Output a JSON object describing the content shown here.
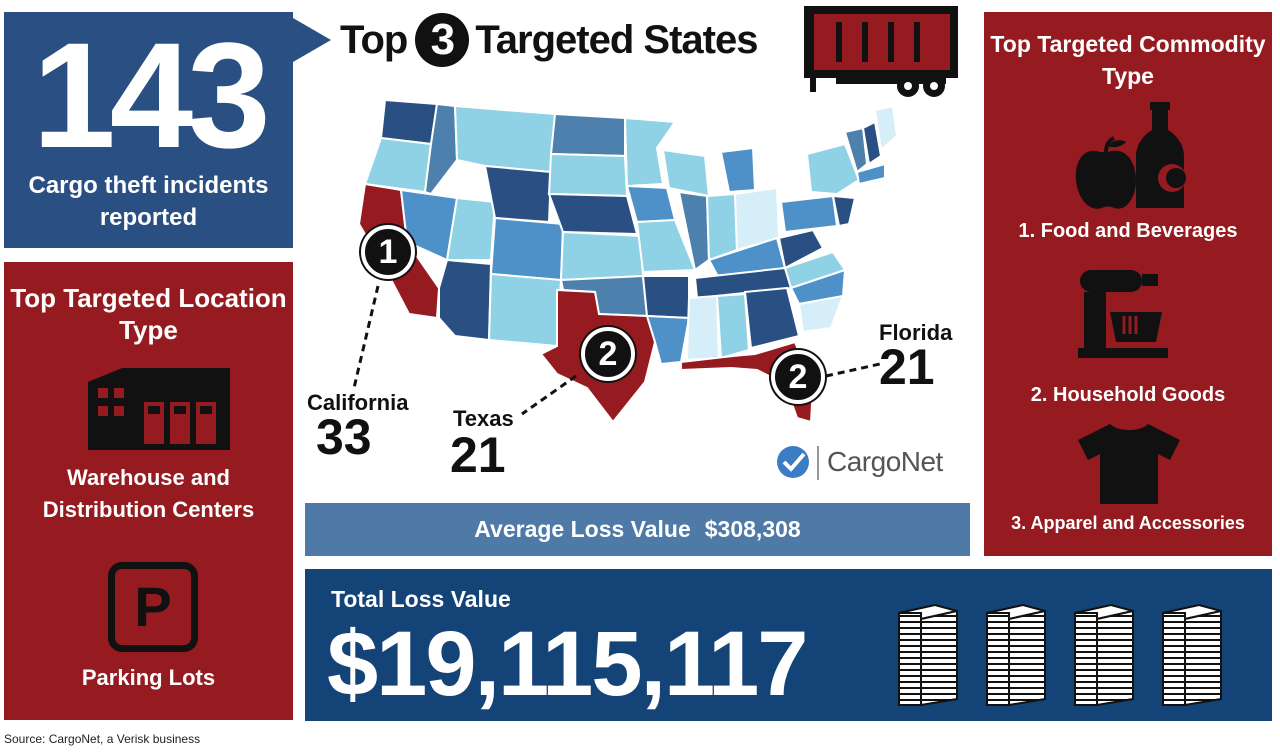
{
  "incidents": {
    "count": "143",
    "label": "Cargo theft incidents reported"
  },
  "states_heading": {
    "prefix": "Top",
    "number": "3",
    "suffix": "Targeted States"
  },
  "location": {
    "title": "Top Targeted Location Type",
    "items": [
      {
        "label": "Warehouse and Distribution Centers",
        "icon": "warehouse-icon"
      },
      {
        "label": "Parking Lots",
        "icon": "parking-icon",
        "glyph": "P"
      }
    ]
  },
  "commodity": {
    "title": "Top Targeted Commodity Type",
    "items": [
      {
        "label": "1. Food and Beverages",
        "icon": "apple-bottle-icon"
      },
      {
        "label": "2. Household Goods",
        "icon": "stand-mixer-icon"
      },
      {
        "label": "3. Apparel and Accessories",
        "icon": "t-shirt-icon"
      }
    ]
  },
  "map": {
    "states": [
      {
        "rank": "1",
        "name": "California",
        "value": "33"
      },
      {
        "rank": "2",
        "name": "Texas",
        "value": "21"
      },
      {
        "rank": "2",
        "name": "Florida",
        "value": "21"
      }
    ],
    "highlight_color": "#951b20"
  },
  "logo": {
    "name": "CargoNet"
  },
  "average_loss": {
    "label": "Average Loss Value",
    "value": "$308,308"
  },
  "total_loss": {
    "label": "Total Loss Value",
    "value": "$19,115,117"
  },
  "source": "Source: CargoNet, a Verisk business",
  "colors": {
    "navy": "#2a5083",
    "dark_navy": "#134377",
    "red": "#951b20",
    "steel_blue": "#4f79a7"
  }
}
